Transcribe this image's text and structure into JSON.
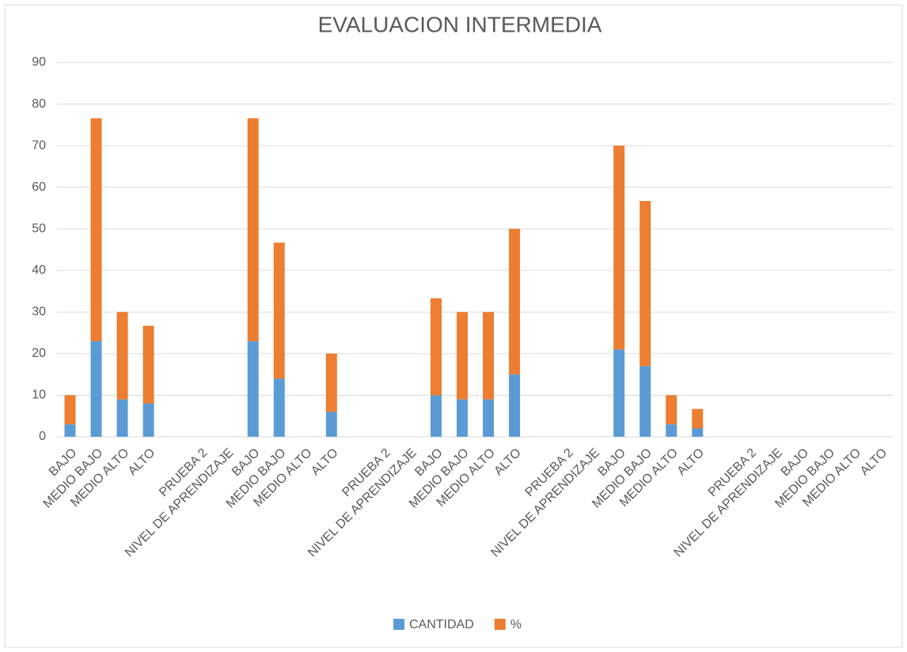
{
  "chart_data": {
    "type": "bar",
    "stacked": true,
    "title": "EVALUACION INTERMEDIA",
    "categories": [
      "BAJO",
      "MEDIO BAJO",
      "MEDIO ALTO",
      "ALTO",
      null,
      "PRUEBA 2",
      "NIVEL DE APRENDIZAJE",
      "BAJO",
      "MEDIO BAJO",
      "MEDIO ALTO",
      "ALTO",
      null,
      "PRUEBA 2",
      "NIVEL DE APRENDIZAJE",
      "BAJO",
      "MEDIO BAJO",
      "MEDIO ALTO",
      "ALTO",
      null,
      "PRUEBA 2",
      "NIVEL DE APRENDIZAJE",
      "BAJO",
      "MEDIO BAJO",
      "MEDIO ALTO",
      "ALTO",
      null,
      "PRUEBA 2",
      "NIVEL DE APRENDIZAJE",
      "BAJO",
      "MEDIO BAJO",
      "MEDIO ALTO",
      "ALTO"
    ],
    "series": [
      {
        "name": "CANTIDAD",
        "color": "#5b9bd5",
        "values": [
          3,
          23,
          9,
          8,
          null,
          null,
          null,
          23,
          14,
          null,
          6,
          null,
          null,
          null,
          10,
          9,
          9,
          15,
          null,
          null,
          null,
          21,
          17,
          3,
          2,
          null,
          null,
          null,
          null,
          null,
          null,
          null
        ]
      },
      {
        "name": "%",
        "color": "#ed7d31",
        "values": [
          7,
          53.6,
          21,
          18.7,
          null,
          null,
          null,
          53.6,
          32.7,
          null,
          14,
          null,
          null,
          null,
          23.3,
          21,
          21,
          35,
          null,
          null,
          null,
          49,
          39.7,
          7,
          4.7,
          null,
          null,
          null,
          null,
          null,
          null,
          null
        ]
      }
    ],
    "ylim": [
      0,
      90
    ],
    "yticks": [
      0,
      10,
      20,
      30,
      40,
      50,
      60,
      70,
      80,
      90
    ],
    "grid": true,
    "legend": "bottom"
  }
}
